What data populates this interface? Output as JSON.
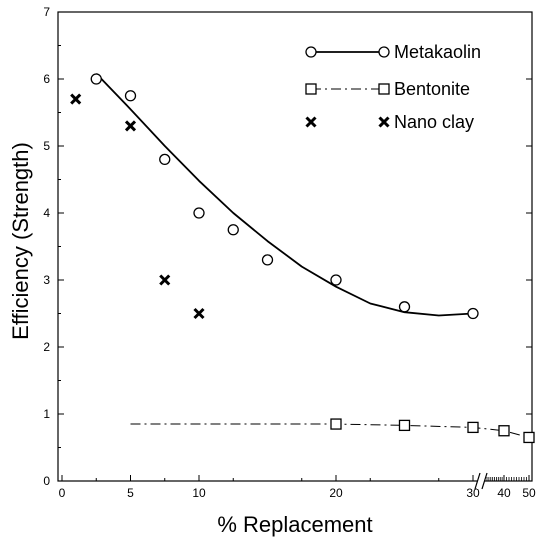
{
  "chart_data": {
    "type": "scatter",
    "title": "",
    "xlabel": "% Replacement",
    "ylabel": "Efficiency (Strength)",
    "ylim": [
      0,
      7
    ],
    "xlim": [
      0,
      50
    ],
    "x_axis_note": "broken axis: 0-31 linear, then 31-50 compressed",
    "x_ticks": [
      0,
      5,
      10,
      20,
      30,
      40,
      50
    ],
    "y_ticks": [
      0,
      1,
      2,
      3,
      4,
      5,
      6,
      7
    ],
    "grid": false,
    "legend_position": "top-right",
    "series": [
      {
        "name": "Metakaolin",
        "marker": "circle",
        "line": "solid",
        "fit_line": true,
        "x": [
          2.5,
          5,
          7.5,
          10,
          12.5,
          15,
          20,
          25,
          30
        ],
        "y": [
          6.0,
          5.75,
          4.8,
          4.0,
          3.75,
          3.3,
          3.0,
          2.6,
          2.5
        ]
      },
      {
        "name": "Bentonite",
        "marker": "square",
        "line": "dash-dot",
        "x": [
          20,
          25,
          30,
          40,
          50
        ],
        "y": [
          0.85,
          0.83,
          0.8,
          0.75,
          0.65
        ]
      },
      {
        "name": "Nano clay",
        "marker": "x",
        "line": "none",
        "x": [
          1,
          5,
          7.5,
          10
        ],
        "y": [
          5.7,
          5.3,
          3.0,
          2.5
        ]
      }
    ],
    "metakaolin_fit_curve": {
      "x": [
        2.5,
        5,
        7.5,
        10,
        12.5,
        15,
        17.5,
        20,
        22.5,
        25,
        27.5,
        30
      ],
      "y": [
        6.08,
        5.55,
        5.0,
        4.48,
        4.0,
        3.58,
        3.2,
        2.9,
        2.65,
        2.52,
        2.47,
        2.5
      ]
    },
    "bentonite_line_start_x": 5
  }
}
